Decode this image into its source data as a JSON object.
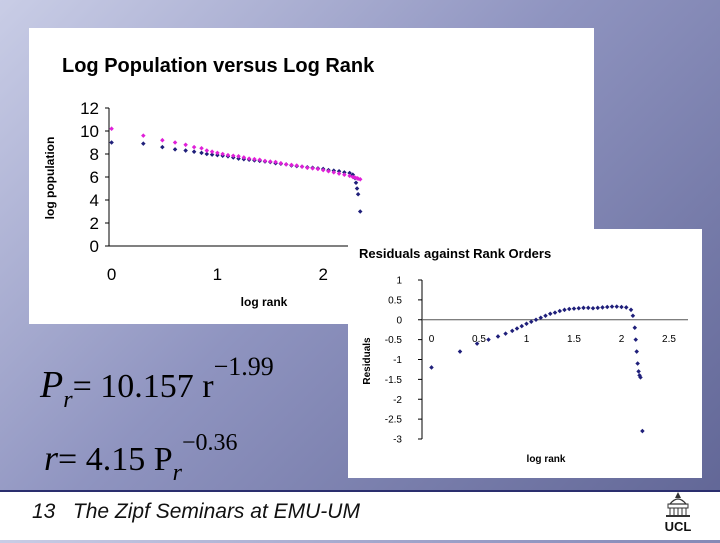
{
  "slide": {
    "footer_number": "13",
    "footer_text": "The Zipf Seminars at EMU-UM",
    "logo_text": "UCL"
  },
  "equations": {
    "eq1": {
      "lhs": "P",
      "lhs_sub": "r",
      "rhs": "= 10.157 r",
      "exp": "−1.99"
    },
    "eq2": {
      "lhs": "r",
      "rhs": "= 4.15 P",
      "rhs_sub": "r",
      "exp": "−0.36"
    }
  },
  "chart_data": [
    {
      "type": "scatter",
      "title": "Log Population versus Log Rank",
      "xlabel": "log rank",
      "ylabel": "log population",
      "xlim": [
        -0.1,
        3.0
      ],
      "ylim": [
        0,
        12
      ],
      "x_ticks": [
        "0",
        "1",
        "2"
      ],
      "y_ticks": [
        "0",
        "2",
        "4",
        "6",
        "8",
        "10",
        "12"
      ],
      "grid": false,
      "legend": "none",
      "series": [
        {
          "color": "#1f1f7a",
          "points": [
            [
              0,
              9.0
            ],
            [
              0.3,
              8.9
            ],
            [
              0.48,
              8.6
            ],
            [
              0.6,
              8.4
            ],
            [
              0.7,
              8.3
            ],
            [
              0.78,
              8.2
            ],
            [
              0.85,
              8.1
            ],
            [
              0.9,
              8.0
            ],
            [
              0.95,
              7.95
            ],
            [
              1.0,
              7.9
            ],
            [
              1.05,
              7.85
            ],
            [
              1.1,
              7.8
            ],
            [
              1.15,
              7.7
            ],
            [
              1.2,
              7.6
            ],
            [
              1.25,
              7.55
            ],
            [
              1.3,
              7.5
            ],
            [
              1.35,
              7.45
            ],
            [
              1.4,
              7.4
            ],
            [
              1.45,
              7.35
            ],
            [
              1.5,
              7.3
            ],
            [
              1.55,
              7.2
            ],
            [
              1.6,
              7.15
            ],
            [
              1.65,
              7.1
            ],
            [
              1.7,
              7.0
            ],
            [
              1.75,
              6.95
            ],
            [
              1.8,
              6.9
            ],
            [
              1.85,
              6.85
            ],
            [
              1.9,
              6.8
            ],
            [
              1.95,
              6.75
            ],
            [
              2.0,
              6.7
            ],
            [
              2.05,
              6.6
            ],
            [
              2.1,
              6.55
            ],
            [
              2.15,
              6.5
            ],
            [
              2.2,
              6.4
            ],
            [
              2.25,
              6.35
            ],
            [
              2.28,
              6.2
            ],
            [
              2.3,
              5.9
            ],
            [
              2.31,
              5.5
            ],
            [
              2.32,
              5.0
            ],
            [
              2.33,
              4.5
            ],
            [
              2.35,
              3.0
            ]
          ]
        },
        {
          "color": "#e020d8",
          "points": [
            [
              0,
              10.2
            ],
            [
              0.3,
              9.6
            ],
            [
              0.48,
              9.2
            ],
            [
              0.6,
              9.0
            ],
            [
              0.7,
              8.8
            ],
            [
              0.78,
              8.6
            ],
            [
              0.85,
              8.5
            ],
            [
              0.9,
              8.3
            ],
            [
              0.95,
              8.2
            ],
            [
              1.0,
              8.1
            ],
            [
              1.05,
              8.0
            ],
            [
              1.1,
              7.9
            ],
            [
              1.15,
              7.85
            ],
            [
              1.2,
              7.8
            ],
            [
              1.25,
              7.7
            ],
            [
              1.3,
              7.6
            ],
            [
              1.35,
              7.55
            ],
            [
              1.4,
              7.5
            ],
            [
              1.45,
              7.4
            ],
            [
              1.5,
              7.35
            ],
            [
              1.55,
              7.3
            ],
            [
              1.6,
              7.2
            ],
            [
              1.65,
              7.1
            ],
            [
              1.7,
              7.05
            ],
            [
              1.75,
              7.0
            ],
            [
              1.8,
              6.9
            ],
            [
              1.85,
              6.8
            ],
            [
              1.9,
              6.75
            ],
            [
              1.95,
              6.7
            ],
            [
              2.0,
              6.6
            ],
            [
              2.05,
              6.5
            ],
            [
              2.1,
              6.4
            ],
            [
              2.15,
              6.3
            ],
            [
              2.2,
              6.2
            ],
            [
              2.25,
              6.1
            ],
            [
              2.28,
              6.0
            ],
            [
              2.3,
              5.95
            ],
            [
              2.32,
              5.9
            ],
            [
              2.33,
              5.85
            ],
            [
              2.35,
              5.8
            ]
          ]
        }
      ]
    },
    {
      "type": "scatter",
      "title": "Residuals against Rank Orders",
      "xlabel": "log rank",
      "ylabel": "Residuals",
      "xlim": [
        -0.1,
        2.7
      ],
      "ylim": [
        -3,
        1
      ],
      "x_ticks": [
        "0",
        "0.5",
        "1",
        "1.5",
        "2",
        "2.5"
      ],
      "y_ticks": [
        "1",
        "0.5",
        "0",
        "-0.5",
        "-1",
        "-1.5",
        "-2",
        "-2.5",
        "-3"
      ],
      "grid": false,
      "legend": "none",
      "series": [
        {
          "color": "#1f1f7a",
          "points": [
            [
              0,
              -1.2
            ],
            [
              0.3,
              -0.8
            ],
            [
              0.48,
              -0.6
            ],
            [
              0.6,
              -0.5
            ],
            [
              0.7,
              -0.42
            ],
            [
              0.78,
              -0.35
            ],
            [
              0.85,
              -0.28
            ],
            [
              0.9,
              -0.22
            ],
            [
              0.95,
              -0.16
            ],
            [
              1.0,
              -0.1
            ],
            [
              1.05,
              -0.05
            ],
            [
              1.1,
              0.0
            ],
            [
              1.15,
              0.05
            ],
            [
              1.2,
              0.1
            ],
            [
              1.25,
              0.15
            ],
            [
              1.3,
              0.18
            ],
            [
              1.35,
              0.22
            ],
            [
              1.4,
              0.25
            ],
            [
              1.45,
              0.27
            ],
            [
              1.5,
              0.28
            ],
            [
              1.55,
              0.29
            ],
            [
              1.6,
              0.3
            ],
            [
              1.65,
              0.3
            ],
            [
              1.7,
              0.29
            ],
            [
              1.75,
              0.3
            ],
            [
              1.8,
              0.31
            ],
            [
              1.85,
              0.32
            ],
            [
              1.9,
              0.33
            ],
            [
              1.95,
              0.33
            ],
            [
              2.0,
              0.32
            ],
            [
              2.05,
              0.31
            ],
            [
              2.1,
              0.25
            ],
            [
              2.12,
              0.1
            ],
            [
              2.14,
              -0.2
            ],
            [
              2.15,
              -0.5
            ],
            [
              2.16,
              -0.8
            ],
            [
              2.17,
              -1.1
            ],
            [
              2.18,
              -1.3
            ],
            [
              2.19,
              -1.4
            ],
            [
              2.2,
              -1.45
            ],
            [
              2.22,
              -2.8
            ]
          ]
        }
      ]
    }
  ]
}
